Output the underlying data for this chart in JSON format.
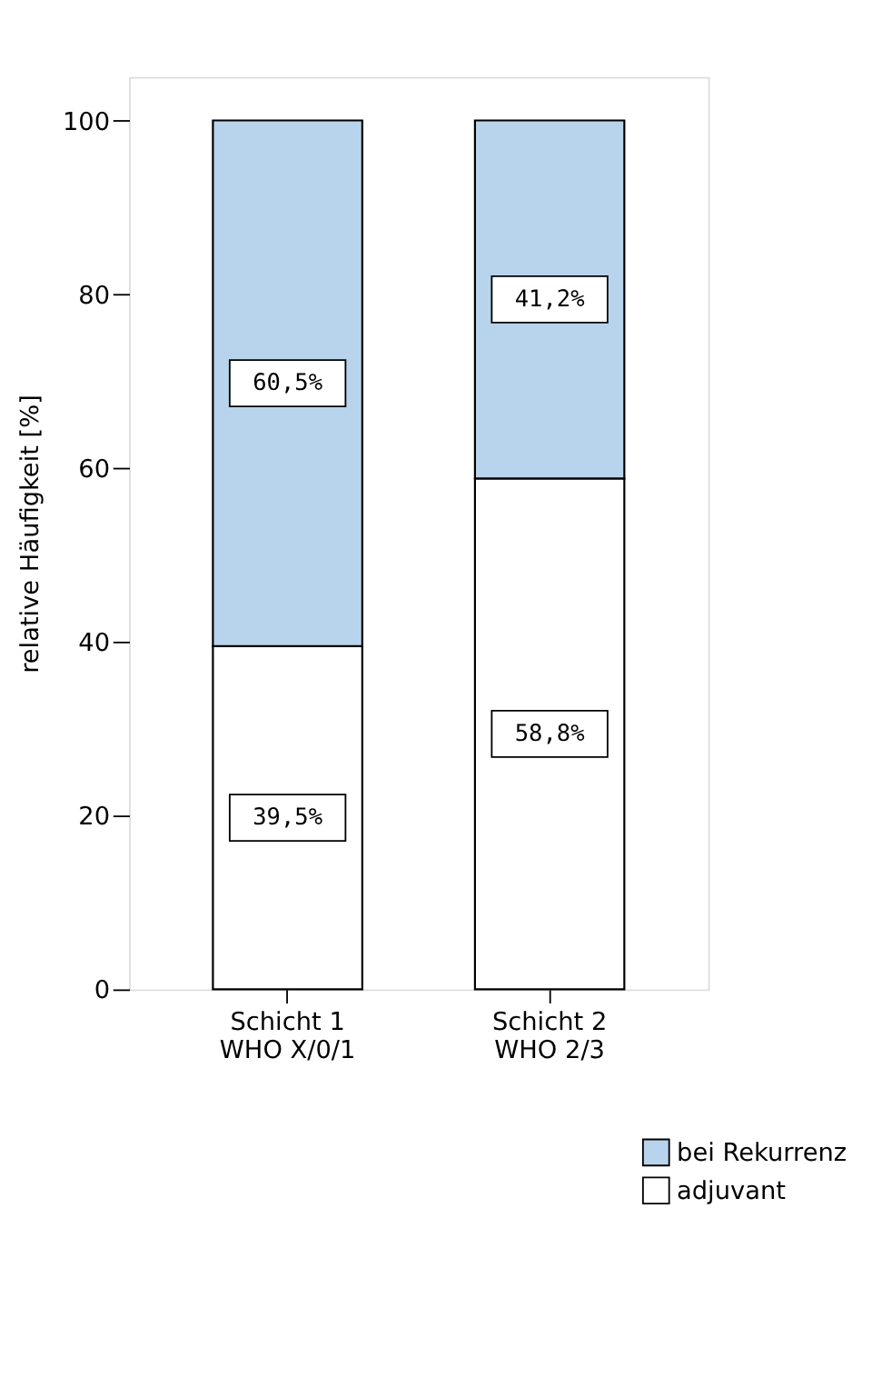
{
  "chart_data": {
    "type": "bar",
    "stacked": true,
    "categories": [
      "Schicht 1\nWHO X/0/1",
      "Schicht 2\nWHO 2/3"
    ],
    "series": [
      {
        "name": "adjuvant",
        "color": "#ffffff",
        "values": [
          39.5,
          58.8
        ],
        "value_labels": [
          "39,5%",
          "58,8%"
        ]
      },
      {
        "name": "bei Rekurrenz",
        "color": "#b8d4ec",
        "values": [
          60.5,
          41.2
        ],
        "value_labels": [
          "60,5%",
          "41,2%"
        ]
      }
    ],
    "ylabel": "relative Häufigkeit [%]",
    "ylim": [
      0,
      105
    ],
    "yticks": [
      0,
      20,
      40,
      60,
      80,
      100
    ],
    "grid": false,
    "legend": "bottom right"
  }
}
